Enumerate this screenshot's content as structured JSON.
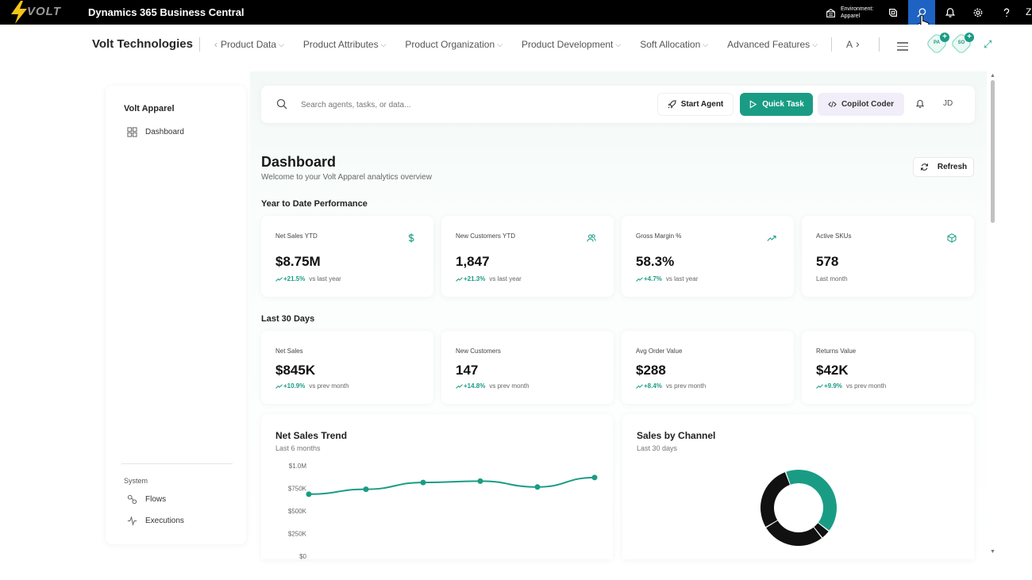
{
  "topbar": {
    "logo_text": "VOLT",
    "app_title": "Dynamics 365 Business Central",
    "environment_label": "Environment:",
    "environment_value": "Apparel",
    "overflow_letter": "Z"
  },
  "nav": {
    "company": "Volt Technologies",
    "items": [
      {
        "label": "Product Data"
      },
      {
        "label": "Product Attributes"
      },
      {
        "label": "Product Organization"
      },
      {
        "label": "Product Development"
      },
      {
        "label": "Soft Allocation"
      },
      {
        "label": "Advanced Features"
      }
    ],
    "overflow_label": "A",
    "badges": [
      {
        "text": "PA"
      },
      {
        "text": "SO"
      }
    ]
  },
  "sidebar": {
    "company": "Volt Apparel",
    "items": [
      {
        "label": "Dashboard",
        "icon": "grid-icon"
      }
    ],
    "section_label": "System",
    "system_items": [
      {
        "label": "Flows",
        "icon": "flow-icon"
      },
      {
        "label": "Executions",
        "icon": "activity-icon"
      }
    ]
  },
  "search": {
    "placeholder": "Search agents, tasks, or data...",
    "start_agent_label": "Start Agent",
    "quick_task_label": "Quick Task",
    "copilot_coder_label": "Copilot Coder",
    "user_initials": "JD"
  },
  "dashboard": {
    "title": "Dashboard",
    "subtitle": "Welcome to your Volt Apparel analytics overview",
    "refresh_label": "Refresh",
    "ytd_section": "Year to Date Performance",
    "ytd_cards": [
      {
        "label": "Net Sales YTD",
        "value": "$8.75M",
        "delta": "+21.5%",
        "note": "vs last year",
        "icon": "dollar-icon"
      },
      {
        "label": "New Customers YTD",
        "value": "1,847",
        "delta": "+21.3%",
        "note": "vs last year",
        "icon": "users-icon"
      },
      {
        "label": "Gross Margin %",
        "value": "58.3%",
        "delta": "+4.7%",
        "note": "vs last year",
        "icon": "trending-up-icon"
      },
      {
        "label": "Active SKUs",
        "value": "578",
        "delta": "",
        "note": "Last month",
        "icon": "box-icon"
      }
    ],
    "last30_section": "Last 30 Days",
    "last30_cards": [
      {
        "label": "Net Sales",
        "value": "$845K",
        "delta": "+10.9%",
        "note": "vs prev month"
      },
      {
        "label": "New Customers",
        "value": "147",
        "delta": "+14.8%",
        "note": "vs prev month"
      },
      {
        "label": "Avg Order Value",
        "value": "$288",
        "delta": "+8.4%",
        "note": "vs prev month"
      },
      {
        "label": "Returns Value",
        "value": "$42K",
        "delta": "+9.9%",
        "note": "vs prev month"
      }
    ]
  },
  "colors": {
    "accent": "#1a9c84",
    "topbar": "#000000",
    "active_tab": "#1e63c3",
    "donut_dark": "#111111"
  },
  "chart_data": [
    {
      "type": "line",
      "title": "Net Sales Trend",
      "subtitle": "Last 6 months",
      "yticks": [
        "$0",
        "$250K",
        "$500K",
        "$750K",
        "$1.0M"
      ],
      "ylim": [
        0,
        1000000
      ],
      "x": [
        1,
        2,
        3,
        4,
        5,
        6
      ],
      "values": [
        685000,
        740000,
        815000,
        830000,
        765000,
        870000
      ]
    },
    {
      "type": "pie",
      "title": "Sales by Channel",
      "subtitle": "Last 30 days",
      "donut": true,
      "values": [
        41,
        4,
        27,
        28
      ],
      "colors": [
        "#1a9c84",
        "#111111",
        "#111111",
        "#111111"
      ]
    }
  ]
}
